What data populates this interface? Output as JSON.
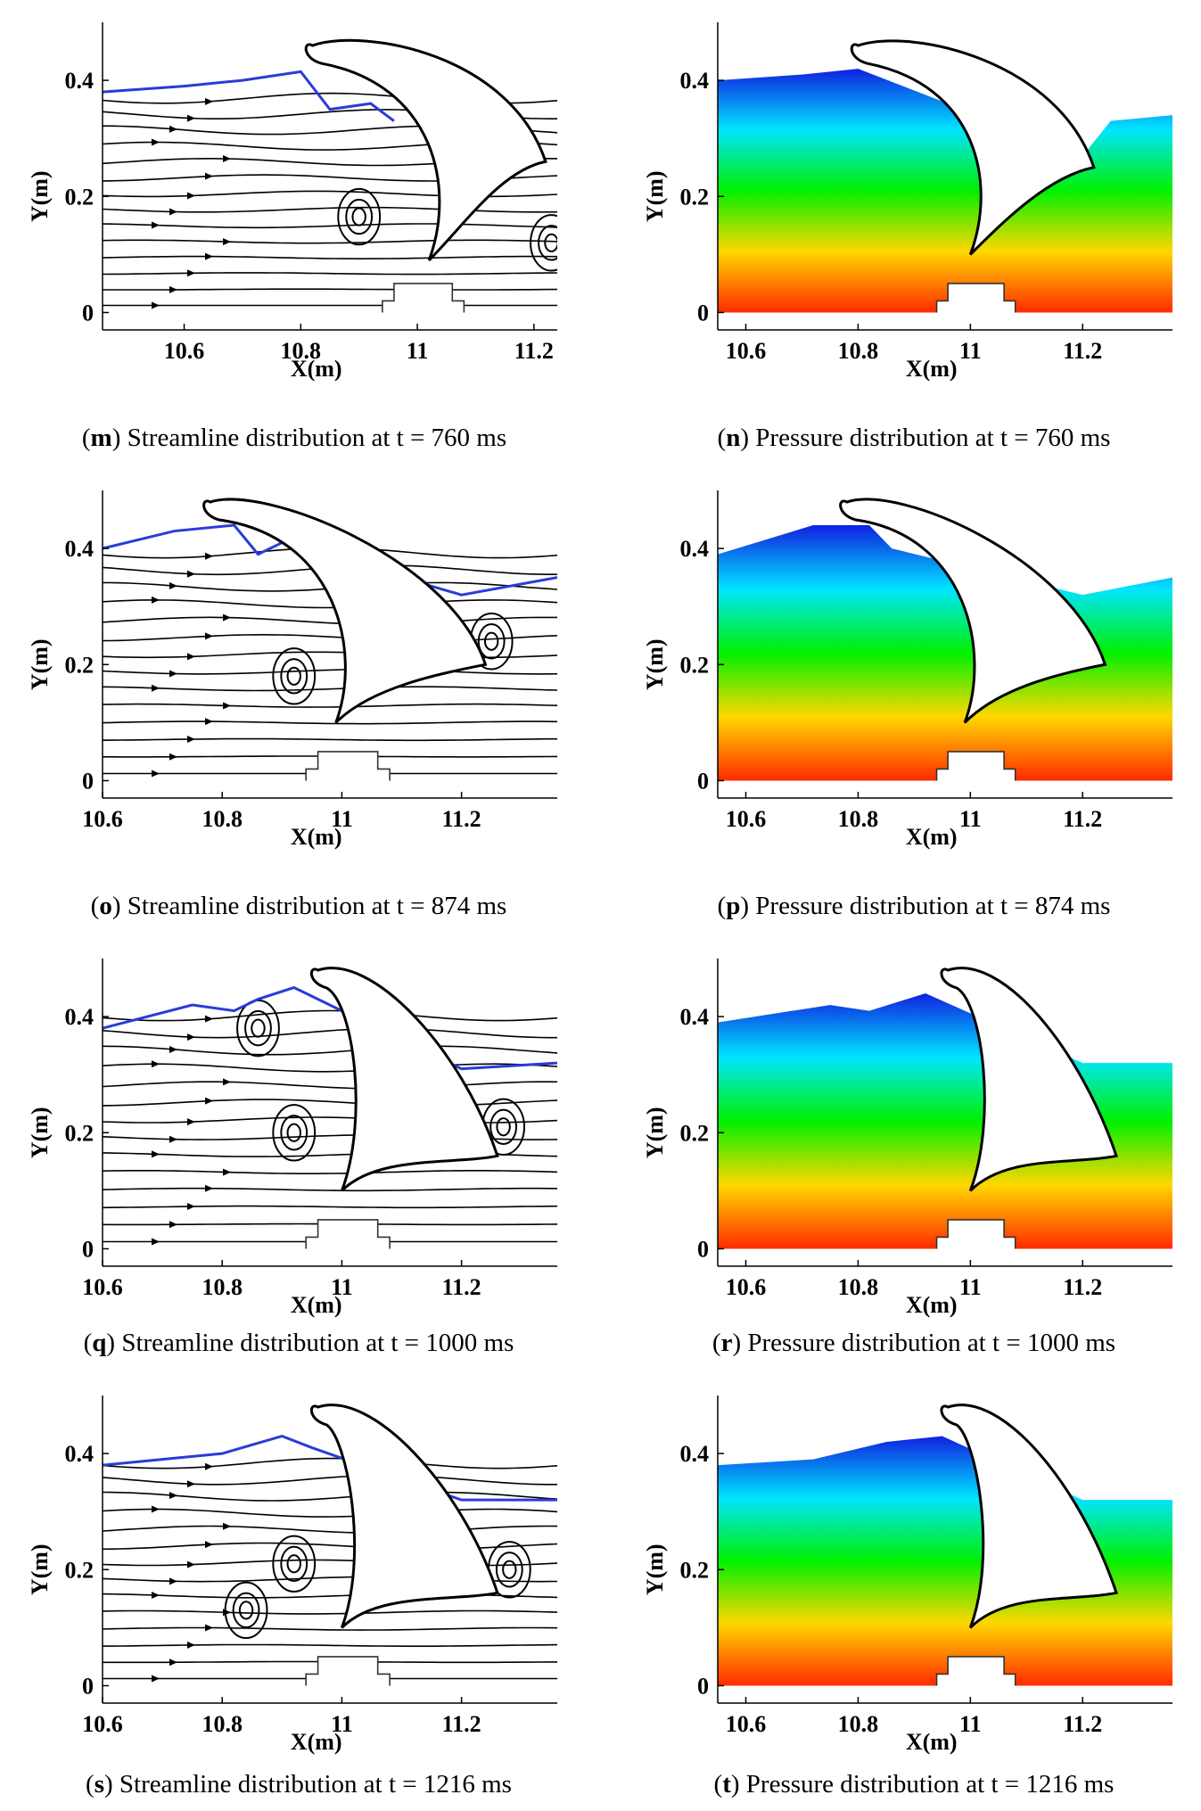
{
  "chart_data": [
    {
      "id": "m",
      "type": "streamline",
      "letter": "m",
      "caption": "Streamline distribution at t = 760 ms",
      "xlabel": "X(m)",
      "ylabel": "Y(m)",
      "xticks": [
        "10.6",
        "10.8",
        "11",
        "11.2"
      ],
      "yticks": [
        "0",
        "0.2",
        "0.4"
      ],
      "xlim": [
        10.46,
        11.24
      ],
      "ylim": [
        -0.03,
        0.5
      ],
      "time_ms": 760,
      "free_surface_color": "#2b3bd9",
      "vortices": [
        [
          10.9,
          0.165
        ],
        [
          11.23,
          0.12
        ]
      ],
      "surface": [
        [
          10.46,
          0.38
        ],
        [
          10.6,
          0.39
        ],
        [
          10.7,
          0.4
        ],
        [
          10.8,
          0.415
        ],
        [
          10.85,
          0.35
        ],
        [
          10.92,
          0.36
        ],
        [
          10.96,
          0.33
        ]
      ],
      "blade": {
        "root": [
          11.0,
          0.3
        ],
        "tip": [
          10.82,
          0.46
        ],
        "trail": [
          11.22,
          0.26
        ],
        "bottom": [
          11.02,
          0.09
        ]
      },
      "body": true
    },
    {
      "id": "n",
      "type": "contour",
      "letter": "n",
      "caption": "Pressure distribution at t = 760 ms",
      "xlabel": "X(m)",
      "ylabel": "Y(m)",
      "xticks": [
        "10.6",
        "10.8",
        "11",
        "11.2"
      ],
      "yticks": [
        "0",
        "0.2",
        "0.4"
      ],
      "xlim": [
        10.55,
        11.36
      ],
      "ylim": [
        -0.03,
        0.5
      ],
      "time_ms": 760,
      "colormap": [
        "#ff2a00",
        "#ffd700",
        "#00f000",
        "#00e5ff",
        "#1020e0"
      ],
      "surface": [
        [
          10.55,
          0.4
        ],
        [
          10.7,
          0.41
        ],
        [
          10.8,
          0.42
        ],
        [
          11.2,
          0.27
        ],
        [
          11.25,
          0.33
        ],
        [
          11.36,
          0.34
        ]
      ],
      "blade": {
        "root": [
          10.98,
          0.3
        ],
        "tip": [
          10.8,
          0.46
        ],
        "trail": [
          11.22,
          0.25
        ],
        "bottom": [
          11.0,
          0.1
        ]
      },
      "body": true
    },
    {
      "id": "o",
      "type": "streamline",
      "letter": "o",
      "caption": "Streamline distribution at t = 874 ms",
      "xlabel": "X(m)",
      "ylabel": "Y(m)",
      "xticks": [
        "10.6",
        "10.8",
        "11",
        "11.2"
      ],
      "yticks": [
        "0",
        "0.2",
        "0.4"
      ],
      "xlim": [
        10.6,
        11.36
      ],
      "ylim": [
        -0.03,
        0.5
      ],
      "time_ms": 874,
      "free_surface_color": "#2b3bd9",
      "vortices": [
        [
          10.92,
          0.18
        ],
        [
          11.25,
          0.24
        ]
      ],
      "surface": [
        [
          10.6,
          0.4
        ],
        [
          10.72,
          0.43
        ],
        [
          10.82,
          0.44
        ],
        [
          10.86,
          0.39
        ],
        [
          10.9,
          0.41
        ],
        [
          11.2,
          0.32
        ],
        [
          11.36,
          0.35
        ]
      ],
      "blade": {
        "root": [
          10.96,
          0.33
        ],
        "tip": [
          10.78,
          0.48
        ],
        "trail": [
          11.24,
          0.2
        ],
        "bottom": [
          10.99,
          0.1
        ]
      },
      "body": true
    },
    {
      "id": "p",
      "type": "contour",
      "letter": "p",
      "caption": "Pressure distribution at t = 874 ms",
      "xlabel": "X(m)",
      "ylabel": "Y(m)",
      "xticks": [
        "10.6",
        "10.8",
        "11",
        "11.2"
      ],
      "yticks": [
        "0",
        "0.2",
        "0.4"
      ],
      "xlim": [
        10.55,
        11.36
      ],
      "ylim": [
        -0.03,
        0.5
      ],
      "time_ms": 874,
      "colormap": [
        "#ff2a00",
        "#ffd700",
        "#00f000",
        "#00e5ff",
        "#1020e0"
      ],
      "surface": [
        [
          10.55,
          0.39
        ],
        [
          10.72,
          0.44
        ],
        [
          10.82,
          0.44
        ],
        [
          10.86,
          0.4
        ],
        [
          11.2,
          0.32
        ],
        [
          11.36,
          0.35
        ]
      ],
      "blade": {
        "root": [
          10.96,
          0.33
        ],
        "tip": [
          10.78,
          0.48
        ],
        "trail": [
          11.24,
          0.2
        ],
        "bottom": [
          10.99,
          0.1
        ]
      },
      "body": true
    },
    {
      "id": "q",
      "type": "streamline",
      "letter": "q",
      "caption": "Streamline distribution at t = 1000 ms",
      "xlabel": "X(m)",
      "ylabel": "Y(m)",
      "xticks": [
        "10.6",
        "10.8",
        "11",
        "11.2"
      ],
      "yticks": [
        "0",
        "0.2",
        "0.4"
      ],
      "xlim": [
        10.6,
        11.36
      ],
      "ylim": [
        -0.03,
        0.5
      ],
      "time_ms": 1000,
      "free_surface_color": "#2b3bd9",
      "vortices": [
        [
          10.92,
          0.2
        ],
        [
          11.27,
          0.21
        ],
        [
          10.86,
          0.38
        ]
      ],
      "surface": [
        [
          10.6,
          0.38
        ],
        [
          10.75,
          0.42
        ],
        [
          10.82,
          0.41
        ],
        [
          10.86,
          0.43
        ],
        [
          10.92,
          0.45
        ],
        [
          11.2,
          0.31
        ],
        [
          11.36,
          0.32
        ]
      ],
      "blade": {
        "root": [
          10.99,
          0.33
        ],
        "tip": [
          10.96,
          0.48
        ],
        "trail": [
          11.26,
          0.16
        ],
        "bottom": [
          11.0,
          0.1
        ]
      },
      "body": true
    },
    {
      "id": "r",
      "type": "contour",
      "letter": "r",
      "caption": "Pressure distribution at t = 1000 ms",
      "xlabel": "X(m)",
      "ylabel": "Y(m)",
      "xticks": [
        "10.6",
        "10.8",
        "11",
        "11.2"
      ],
      "yticks": [
        "0",
        "0.2",
        "0.4"
      ],
      "xlim": [
        10.55,
        11.36
      ],
      "ylim": [
        -0.03,
        0.5
      ],
      "time_ms": 1000,
      "colormap": [
        "#ff2a00",
        "#ffd700",
        "#00f000",
        "#00e5ff",
        "#1020e0"
      ],
      "surface": [
        [
          10.55,
          0.39
        ],
        [
          10.75,
          0.42
        ],
        [
          10.82,
          0.41
        ],
        [
          10.92,
          0.44
        ],
        [
          11.2,
          0.32
        ],
        [
          11.36,
          0.32
        ]
      ],
      "blade": {
        "root": [
          10.99,
          0.33
        ],
        "tip": [
          10.96,
          0.48
        ],
        "trail": [
          11.26,
          0.16
        ],
        "bottom": [
          11.0,
          0.1
        ]
      },
      "body": true
    },
    {
      "id": "s",
      "type": "streamline",
      "letter": "s",
      "caption": "Streamline distribution at t = 1216 ms",
      "xlabel": "X(m)",
      "ylabel": "Y(m)",
      "xticks": [
        "10.6",
        "10.8",
        "11",
        "11.2"
      ],
      "yticks": [
        "0",
        "0.2",
        "0.4"
      ],
      "xlim": [
        10.6,
        11.36
      ],
      "ylim": [
        -0.03,
        0.5
      ],
      "time_ms": 1216,
      "free_surface_color": "#2b3bd9",
      "vortices": [
        [
          10.84,
          0.13
        ],
        [
          10.92,
          0.21
        ],
        [
          11.28,
          0.2
        ]
      ],
      "surface": [
        [
          10.6,
          0.38
        ],
        [
          10.7,
          0.39
        ],
        [
          10.8,
          0.4
        ],
        [
          10.9,
          0.43
        ],
        [
          10.95,
          0.41
        ],
        [
          11.2,
          0.32
        ],
        [
          11.36,
          0.32
        ]
      ],
      "blade": {
        "root": [
          10.98,
          0.33
        ],
        "tip": [
          10.96,
          0.48
        ],
        "trail": [
          11.26,
          0.16
        ],
        "bottom": [
          11.0,
          0.1
        ]
      },
      "body": true
    },
    {
      "id": "t",
      "type": "contour",
      "letter": "t",
      "caption": "Pressure distribution at t = 1216 ms",
      "xlabel": "X(m)",
      "ylabel": "Y(m)",
      "xticks": [
        "10.6",
        "10.8",
        "11",
        "11.2"
      ],
      "yticks": [
        "0",
        "0.2",
        "0.4"
      ],
      "xlim": [
        10.55,
        11.36
      ],
      "ylim": [
        -0.03,
        0.5
      ],
      "time_ms": 1216,
      "colormap": [
        "#ff2a00",
        "#ffd700",
        "#00f000",
        "#00e5ff",
        "#1020e0"
      ],
      "surface": [
        [
          10.55,
          0.38
        ],
        [
          10.72,
          0.39
        ],
        [
          10.85,
          0.42
        ],
        [
          10.95,
          0.43
        ],
        [
          11.2,
          0.32
        ],
        [
          11.36,
          0.32
        ]
      ],
      "blade": {
        "root": [
          10.98,
          0.33
        ],
        "tip": [
          10.96,
          0.48
        ],
        "trail": [
          11.26,
          0.16
        ],
        "bottom": [
          11.0,
          0.1
        ]
      },
      "body": true
    }
  ]
}
